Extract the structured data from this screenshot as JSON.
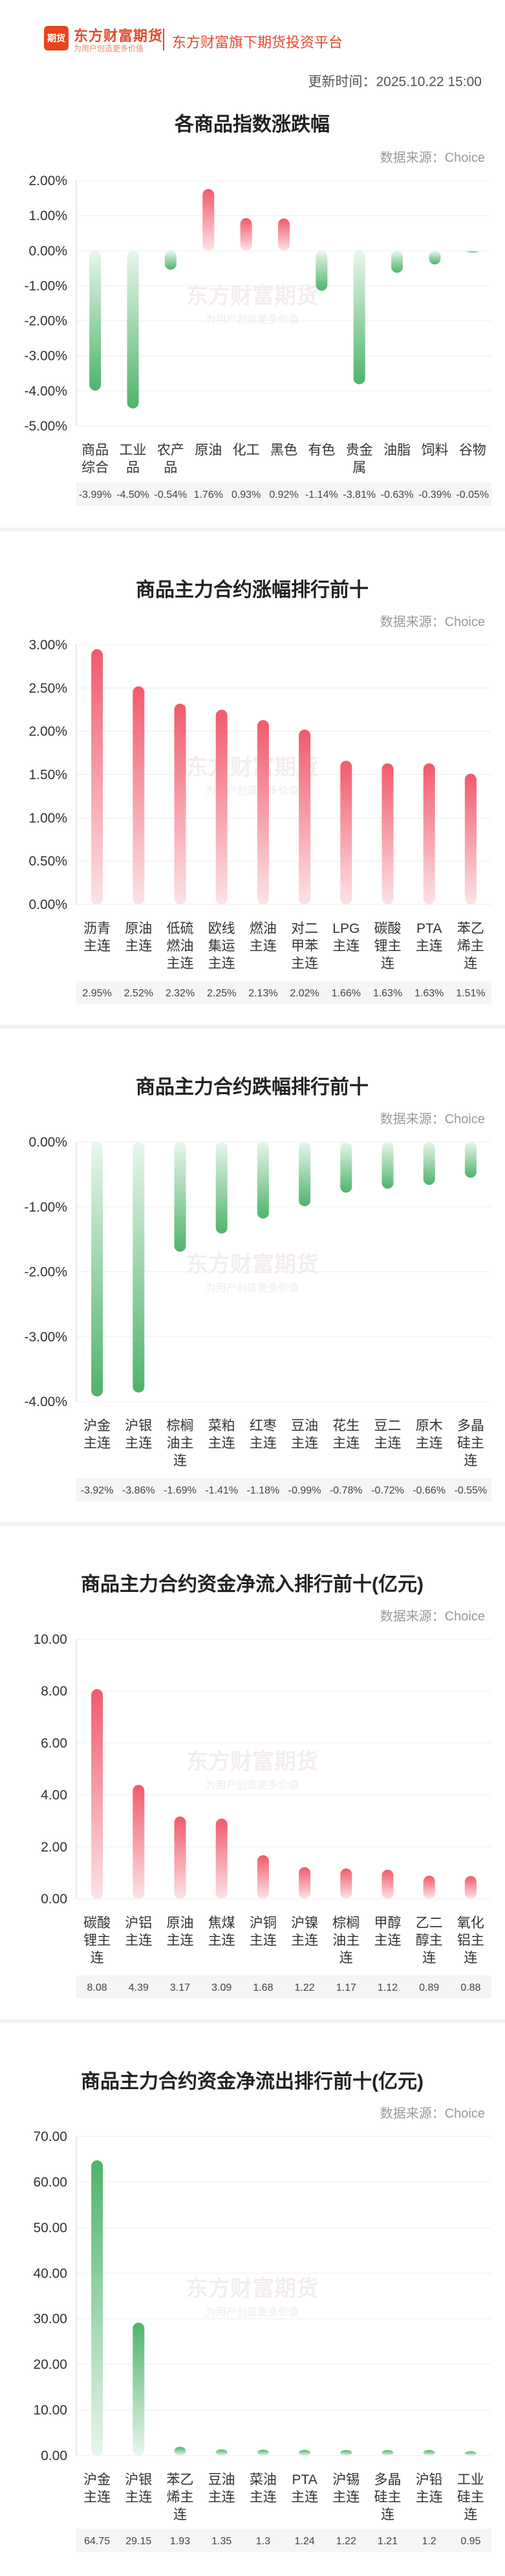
{
  "header": {
    "logo_badge": "期货",
    "brand_name": "东方财富期货",
    "brand_slogan": "为用户创造更多价值",
    "platform": "东方财富旗下期货投资平台",
    "update_time": "更新时间：2025.10.22 15:00"
  },
  "watermark": {
    "line1": "东方财富期货",
    "line2": "为用户创造更多价值"
  },
  "chart_data": [
    {
      "id": "index",
      "type": "bar",
      "title": "各商品指数涨跌幅",
      "source": "数据来源：Choice",
      "categories": [
        "商品综合",
        "工业品",
        "农产品",
        "原油",
        "化工",
        "黑色",
        "有色",
        "贵金属",
        "油脂",
        "饲料",
        "谷物"
      ],
      "values": [
        -3.99,
        -4.5,
        -0.54,
        1.76,
        0.93,
        0.92,
        -1.14,
        -3.81,
        -0.63,
        -0.39,
        -0.05
      ],
      "value_labels": [
        "-3.99%",
        "-4.50%",
        "-0.54%",
        "1.76%",
        "0.93%",
        "0.92%",
        "-1.14%",
        "-3.81%",
        "-0.63%",
        "-0.39%",
        "-0.05%"
      ],
      "ylim": [
        -5,
        2
      ],
      "yticks": [
        2,
        1,
        0,
        -1,
        -2,
        -3,
        -4,
        -5
      ],
      "ytick_labels": [
        "2.00%",
        "1.00%",
        "0.00%",
        "-1.00%",
        "-2.00%",
        "-3.00%",
        "-4.00%",
        "-5.00%"
      ]
    },
    {
      "id": "gain",
      "type": "bar",
      "title": "商品主力合约涨幅排行前十",
      "source": "数据来源：Choice",
      "categories": [
        "沥青主连",
        "原油主连",
        "低硫燃油主连",
        "欧线集运主连",
        "燃油主连",
        "对二甲苯主连",
        "LPG主连",
        "碳酸锂主连",
        "PTA主连",
        "苯乙烯主连"
      ],
      "values": [
        2.95,
        2.52,
        2.32,
        2.25,
        2.13,
        2.02,
        1.66,
        1.63,
        1.63,
        1.51
      ],
      "value_labels": [
        "2.95%",
        "2.52%",
        "2.32%",
        "2.25%",
        "2.13%",
        "2.02%",
        "1.66%",
        "1.63%",
        "1.63%",
        "1.51%"
      ],
      "ylim": [
        0,
        3
      ],
      "yticks": [
        3,
        2.5,
        2,
        1.5,
        1,
        0.5,
        0
      ],
      "ytick_labels": [
        "3.00%",
        "2.50%",
        "2.00%",
        "1.50%",
        "1.00%",
        "0.50%",
        "0.00%"
      ]
    },
    {
      "id": "loss",
      "type": "bar",
      "title": "商品主力合约跌幅排行前十",
      "source": "数据来源：Choice",
      "categories": [
        "沪金主连",
        "沪银主连",
        "棕榈油主连",
        "菜粕主连",
        "红枣主连",
        "豆油主连",
        "花生主连",
        "豆二主连",
        "原木主连",
        "多晶硅主连"
      ],
      "values": [
        -3.92,
        -3.86,
        -1.69,
        -1.41,
        -1.18,
        -0.99,
        -0.78,
        -0.72,
        -0.66,
        -0.55
      ],
      "value_labels": [
        "-3.92%",
        "-3.86%",
        "-1.69%",
        "-1.41%",
        "-1.18%",
        "-0.99%",
        "-0.78%",
        "-0.72%",
        "-0.66%",
        "-0.55%"
      ],
      "ylim": [
        -4,
        0
      ],
      "yticks": [
        0,
        -1,
        -2,
        -3,
        -4
      ],
      "ytick_labels": [
        "0.00%",
        "-1.00%",
        "-2.00%",
        "-3.00%",
        "-4.00%"
      ]
    },
    {
      "id": "inflow",
      "type": "bar",
      "title": "商品主力合约资金净流入排行前十(亿元)",
      "source": "数据来源：Choice",
      "categories": [
        "碳酸锂主连",
        "沪铝主连",
        "原油主连",
        "焦煤主连",
        "沪铜主连",
        "沪镍主连",
        "棕榈油主连",
        "甲醇主连",
        "乙二醇主连",
        "氧化铝主连"
      ],
      "values": [
        8.08,
        4.39,
        3.17,
        3.09,
        1.68,
        1.22,
        1.17,
        1.12,
        0.89,
        0.88
      ],
      "value_labels": [
        "8.08",
        "4.39",
        "3.17",
        "3.09",
        "1.68",
        "1.22",
        "1.17",
        "1.12",
        "0.89",
        "0.88"
      ],
      "ylim": [
        0,
        10
      ],
      "yticks": [
        10,
        8,
        6,
        4,
        2,
        0
      ],
      "ytick_labels": [
        "10.00",
        "8.00",
        "6.00",
        "4.00",
        "2.00",
        "0.00"
      ]
    },
    {
      "id": "outflow",
      "type": "bar",
      "title": "商品主力合约资金净流出排行前十(亿元)",
      "source": "数据来源：Choice",
      "categories": [
        "沪金主连",
        "沪银主连",
        "苯乙烯主连",
        "豆油主连",
        "菜油主连",
        "PTA主连",
        "沪锡主连",
        "多晶硅主连",
        "沪铅主连",
        "工业硅主连"
      ],
      "values": [
        64.75,
        29.15,
        1.93,
        1.35,
        1.3,
        1.24,
        1.22,
        1.21,
        1.2,
        0.95
      ],
      "value_labels": [
        "64.75",
        "29.15",
        "1.93",
        "1.35",
        "1.3",
        "1.24",
        "1.22",
        "1.21",
        "1.2",
        "0.95"
      ],
      "ylim": [
        0,
        70
      ],
      "yticks": [
        70,
        60,
        50,
        40,
        30,
        20,
        10,
        0
      ],
      "ytick_labels": [
        "70.00",
        "60.00",
        "50.00",
        "40.00",
        "30.00",
        "20.00",
        "10.00",
        "0.00"
      ]
    }
  ],
  "colors": {
    "red_top": "#f25a6c",
    "red_bottom": "#fce3e6",
    "green_top": "#e8f6ec",
    "green_bottom": "#4fb46a",
    "axis_text": "#333333",
    "source_text": "#999999",
    "grid": "#eeeeee",
    "value_row_bg": "#f5f5f5",
    "watermark": "#f0e6e6"
  }
}
